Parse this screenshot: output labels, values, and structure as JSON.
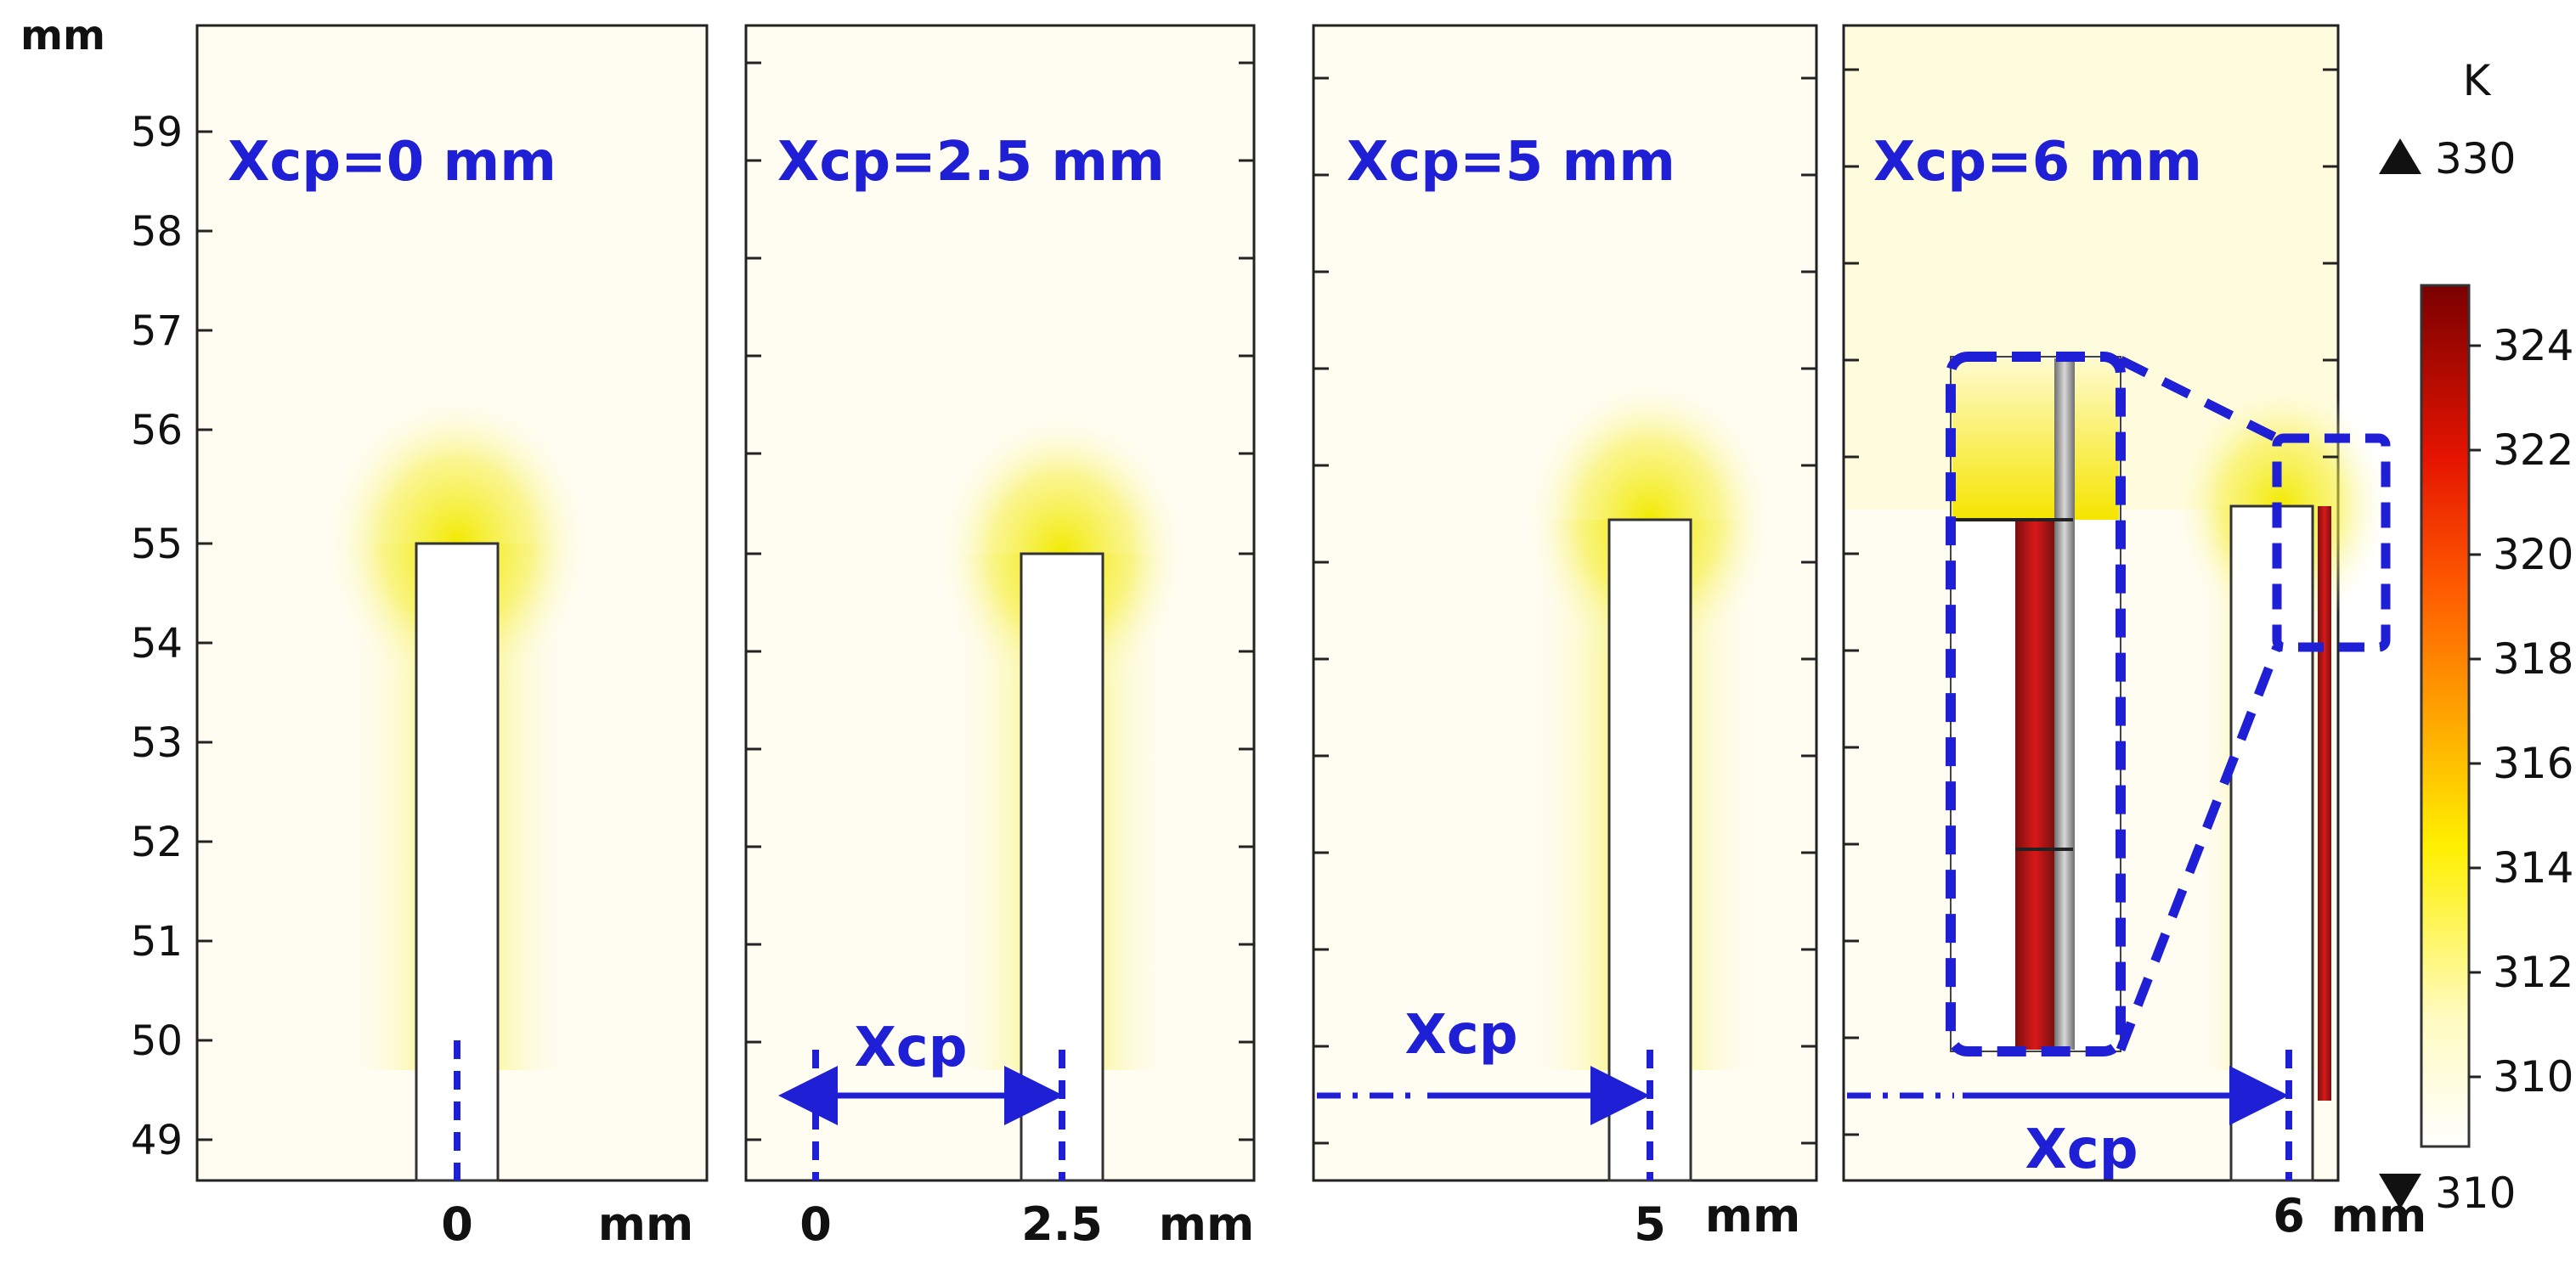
{
  "figure": {
    "y_unit_label": "mm",
    "y_ticks": [
      "59",
      "58",
      "57",
      "56",
      "55",
      "54",
      "53",
      "52",
      "51",
      "50",
      "49"
    ],
    "panels": [
      {
        "title": "Xcp=0 mm",
        "x_tick": "0",
        "x_zero": "",
        "x_unit": "mm",
        "xcp_label": ""
      },
      {
        "title": "Xcp=2.5 mm",
        "x_tick": "2.5",
        "x_zero": "0",
        "x_unit": "mm",
        "xcp_label": "Xcp"
      },
      {
        "title": "Xcp=5 mm",
        "x_tick": "5",
        "x_zero": "",
        "x_unit": "mm",
        "xcp_label": "Xcp"
      },
      {
        "title": "Xcp=6 mm",
        "x_tick": "6",
        "x_zero": "",
        "x_unit": "mm",
        "xcp_label": "Xcp"
      }
    ],
    "colorbar": {
      "unit": "K",
      "max_marker": "330",
      "min_marker": "310",
      "ticks": [
        "324",
        "322",
        "320",
        "318",
        "316",
        "314",
        "312",
        "310"
      ]
    }
  },
  "colors": {
    "accent": "#1f1fd6",
    "background": "#fffdf2"
  }
}
